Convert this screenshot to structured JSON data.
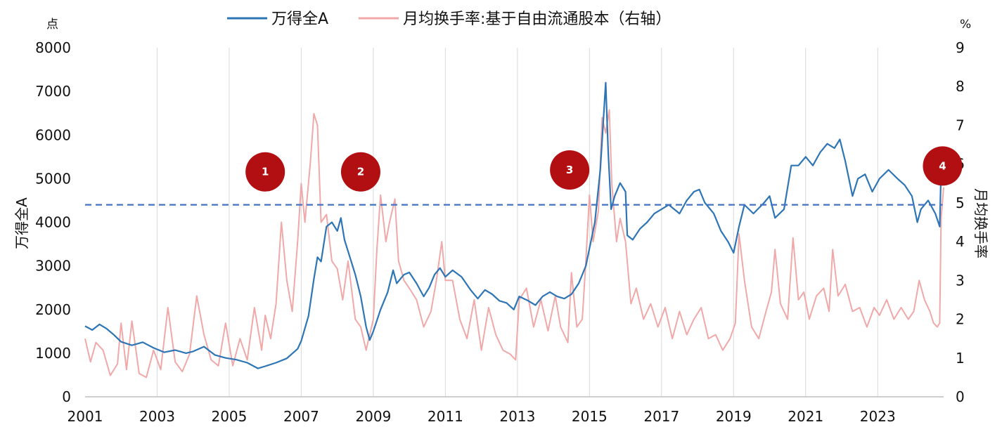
{
  "chart_data": {
    "type": "line",
    "title": "",
    "left_axis_unit": "点",
    "right_axis_unit": "%",
    "ylabel": "万得全A",
    "ylabel_right": "月均换手率",
    "x_ticks": [
      "2001",
      "2003",
      "2005",
      "2007",
      "2009",
      "2011",
      "2013",
      "2015",
      "2017",
      "2019",
      "2021",
      "2023"
    ],
    "xlim": [
      2001,
      2024.83
    ],
    "ylim": [
      0,
      8000
    ],
    "ylim_right": [
      0,
      9
    ],
    "y_ticks": [
      0,
      1000,
      2000,
      3000,
      4000,
      5000,
      6000,
      7000,
      8000
    ],
    "y_ticks_right": [
      0,
      1,
      2,
      3,
      4,
      5,
      6,
      7,
      8,
      9
    ],
    "grid": "vertical",
    "legend_position": "top-center",
    "reference_line": {
      "axis": "right",
      "value": 4.95,
      "style": "dashed",
      "color": "#4472c4"
    },
    "series": [
      {
        "name": "万得全A",
        "axis": "left",
        "color": "#2e75b6",
        "points": [
          [
            2001.0,
            1620
          ],
          [
            2001.2,
            1530
          ],
          [
            2001.4,
            1660
          ],
          [
            2001.6,
            1560
          ],
          [
            2001.8,
            1420
          ],
          [
            2002.0,
            1260
          ],
          [
            2002.3,
            1180
          ],
          [
            2002.6,
            1250
          ],
          [
            2002.9,
            1120
          ],
          [
            2003.2,
            1020
          ],
          [
            2003.5,
            1070
          ],
          [
            2003.8,
            1000
          ],
          [
            2004.0,
            1040
          ],
          [
            2004.3,
            1150
          ],
          [
            2004.6,
            960
          ],
          [
            2004.9,
            890
          ],
          [
            2005.2,
            850
          ],
          [
            2005.5,
            780
          ],
          [
            2005.8,
            650
          ],
          [
            2006.0,
            700
          ],
          [
            2006.3,
            780
          ],
          [
            2006.6,
            880
          ],
          [
            2006.9,
            1100
          ],
          [
            2007.0,
            1280
          ],
          [
            2007.2,
            1850
          ],
          [
            2007.35,
            2700
          ],
          [
            2007.45,
            3200
          ],
          [
            2007.55,
            3100
          ],
          [
            2007.7,
            3900
          ],
          [
            2007.85,
            4000
          ],
          [
            2008.0,
            3800
          ],
          [
            2008.1,
            4100
          ],
          [
            2008.2,
            3600
          ],
          [
            2008.35,
            3200
          ],
          [
            2008.5,
            2800
          ],
          [
            2008.65,
            2300
          ],
          [
            2008.8,
            1600
          ],
          [
            2008.9,
            1300
          ],
          [
            2009.0,
            1500
          ],
          [
            2009.2,
            2000
          ],
          [
            2009.4,
            2400
          ],
          [
            2009.55,
            2900
          ],
          [
            2009.65,
            2600
          ],
          [
            2009.85,
            2800
          ],
          [
            2010.0,
            2850
          ],
          [
            2010.2,
            2600
          ],
          [
            2010.4,
            2300
          ],
          [
            2010.55,
            2500
          ],
          [
            2010.7,
            2800
          ],
          [
            2010.85,
            2950
          ],
          [
            2011.0,
            2750
          ],
          [
            2011.2,
            2900
          ],
          [
            2011.45,
            2750
          ],
          [
            2011.7,
            2450
          ],
          [
            2011.9,
            2250
          ],
          [
            2012.1,
            2450
          ],
          [
            2012.3,
            2350
          ],
          [
            2012.5,
            2200
          ],
          [
            2012.7,
            2150
          ],
          [
            2012.9,
            2000
          ],
          [
            2013.05,
            2300
          ],
          [
            2013.3,
            2200
          ],
          [
            2013.5,
            2100
          ],
          [
            2013.7,
            2300
          ],
          [
            2013.9,
            2400
          ],
          [
            2014.1,
            2300
          ],
          [
            2014.3,
            2250
          ],
          [
            2014.5,
            2350
          ],
          [
            2014.7,
            2600
          ],
          [
            2014.9,
            3000
          ],
          [
            2015.0,
            3400
          ],
          [
            2015.15,
            4000
          ],
          [
            2015.3,
            5200
          ],
          [
            2015.45,
            7200
          ],
          [
            2015.52,
            5600
          ],
          [
            2015.6,
            4300
          ],
          [
            2015.7,
            4600
          ],
          [
            2015.85,
            4900
          ],
          [
            2016.0,
            4700
          ],
          [
            2016.05,
            3700
          ],
          [
            2016.2,
            3600
          ],
          [
            2016.4,
            3850
          ],
          [
            2016.6,
            4000
          ],
          [
            2016.8,
            4200
          ],
          [
            2017.0,
            4300
          ],
          [
            2017.2,
            4400
          ],
          [
            2017.5,
            4200
          ],
          [
            2017.7,
            4500
          ],
          [
            2017.9,
            4700
          ],
          [
            2018.05,
            4750
          ],
          [
            2018.2,
            4450
          ],
          [
            2018.45,
            4200
          ],
          [
            2018.65,
            3800
          ],
          [
            2018.85,
            3550
          ],
          [
            2019.0,
            3300
          ],
          [
            2019.15,
            3900
          ],
          [
            2019.3,
            4400
          ],
          [
            2019.55,
            4200
          ],
          [
            2019.85,
            4450
          ],
          [
            2020.0,
            4600
          ],
          [
            2020.15,
            4100
          ],
          [
            2020.4,
            4300
          ],
          [
            2020.6,
            5300
          ],
          [
            2020.8,
            5300
          ],
          [
            2021.0,
            5500
          ],
          [
            2021.2,
            5300
          ],
          [
            2021.4,
            5600
          ],
          [
            2021.6,
            5800
          ],
          [
            2021.8,
            5700
          ],
          [
            2021.95,
            5900
          ],
          [
            2022.1,
            5400
          ],
          [
            2022.3,
            4600
          ],
          [
            2022.45,
            5000
          ],
          [
            2022.65,
            5100
          ],
          [
            2022.85,
            4700
          ],
          [
            2023.05,
            5000
          ],
          [
            2023.3,
            5200
          ],
          [
            2023.55,
            5000
          ],
          [
            2023.75,
            4850
          ],
          [
            2023.95,
            4600
          ],
          [
            2024.1,
            4000
          ],
          [
            2024.2,
            4300
          ],
          [
            2024.4,
            4500
          ],
          [
            2024.6,
            4200
          ],
          [
            2024.72,
            3900
          ],
          [
            2024.76,
            5200
          ],
          [
            2024.83,
            5250
          ]
        ]
      },
      {
        "name": "月均换手率:基于自由流通股本（右轴）",
        "axis": "right",
        "color": "#f0a8a8",
        "points": [
          [
            2001.0,
            1.5
          ],
          [
            2001.15,
            0.9
          ],
          [
            2001.3,
            1.4
          ],
          [
            2001.5,
            1.2
          ],
          [
            2001.7,
            0.55
          ],
          [
            2001.9,
            0.85
          ],
          [
            2002.0,
            1.9
          ],
          [
            2002.15,
            0.7
          ],
          [
            2002.3,
            1.95
          ],
          [
            2002.5,
            0.6
          ],
          [
            2002.7,
            0.5
          ],
          [
            2002.9,
            1.2
          ],
          [
            2003.1,
            0.7
          ],
          [
            2003.3,
            2.3
          ],
          [
            2003.5,
            0.9
          ],
          [
            2003.7,
            0.65
          ],
          [
            2003.9,
            1.1
          ],
          [
            2004.1,
            2.6
          ],
          [
            2004.3,
            1.6
          ],
          [
            2004.5,
            0.95
          ],
          [
            2004.7,
            0.8
          ],
          [
            2004.9,
            1.9
          ],
          [
            2005.1,
            0.8
          ],
          [
            2005.3,
            1.5
          ],
          [
            2005.5,
            0.95
          ],
          [
            2005.7,
            2.3
          ],
          [
            2005.9,
            1.2
          ],
          [
            2006.0,
            2.1
          ],
          [
            2006.15,
            1.5
          ],
          [
            2006.3,
            2.4
          ],
          [
            2006.45,
            4.5
          ],
          [
            2006.6,
            3.0
          ],
          [
            2006.75,
            2.2
          ],
          [
            2006.9,
            4.0
          ],
          [
            2007.0,
            5.5
          ],
          [
            2007.1,
            4.5
          ],
          [
            2007.25,
            6.0
          ],
          [
            2007.35,
            7.3
          ],
          [
            2007.45,
            7.0
          ],
          [
            2007.55,
            4.5
          ],
          [
            2007.7,
            4.7
          ],
          [
            2007.85,
            3.5
          ],
          [
            2008.0,
            3.3
          ],
          [
            2008.15,
            2.5
          ],
          [
            2008.3,
            3.5
          ],
          [
            2008.5,
            2.0
          ],
          [
            2008.65,
            1.8
          ],
          [
            2008.8,
            1.2
          ],
          [
            2009.0,
            2.0
          ],
          [
            2009.1,
            3.8
          ],
          [
            2009.2,
            5.2
          ],
          [
            2009.35,
            4.0
          ],
          [
            2009.45,
            4.5
          ],
          [
            2009.6,
            5.1
          ],
          [
            2009.7,
            3.5
          ],
          [
            2009.85,
            3.0
          ],
          [
            2010.0,
            2.8
          ],
          [
            2010.2,
            2.5
          ],
          [
            2010.4,
            1.8
          ],
          [
            2010.6,
            2.2
          ],
          [
            2010.75,
            3.0
          ],
          [
            2010.9,
            4.0
          ],
          [
            2011.0,
            3.0
          ],
          [
            2011.2,
            3.0
          ],
          [
            2011.4,
            2.0
          ],
          [
            2011.6,
            1.5
          ],
          [
            2011.8,
            2.5
          ],
          [
            2012.0,
            1.2
          ],
          [
            2012.2,
            2.3
          ],
          [
            2012.4,
            1.6
          ],
          [
            2012.6,
            1.2
          ],
          [
            2012.8,
            1.1
          ],
          [
            2012.95,
            0.95
          ],
          [
            2013.05,
            2.5
          ],
          [
            2013.25,
            2.8
          ],
          [
            2013.45,
            1.8
          ],
          [
            2013.65,
            2.5
          ],
          [
            2013.85,
            1.7
          ],
          [
            2014.05,
            2.6
          ],
          [
            2014.2,
            1.8
          ],
          [
            2014.4,
            1.4
          ],
          [
            2014.5,
            3.2
          ],
          [
            2014.65,
            1.8
          ],
          [
            2014.8,
            2.0
          ],
          [
            2014.9,
            3.5
          ],
          [
            2015.0,
            5.2
          ],
          [
            2015.1,
            4.0
          ],
          [
            2015.25,
            4.8
          ],
          [
            2015.35,
            7.2
          ],
          [
            2015.45,
            6.8
          ],
          [
            2015.55,
            7.4
          ],
          [
            2015.62,
            5.5
          ],
          [
            2015.75,
            4.0
          ],
          [
            2015.85,
            4.6
          ],
          [
            2016.0,
            4.0
          ],
          [
            2016.15,
            2.4
          ],
          [
            2016.3,
            2.8
          ],
          [
            2016.5,
            2.0
          ],
          [
            2016.7,
            2.4
          ],
          [
            2016.9,
            1.8
          ],
          [
            2017.1,
            2.3
          ],
          [
            2017.3,
            1.5
          ],
          [
            2017.5,
            2.2
          ],
          [
            2017.7,
            1.6
          ],
          [
            2017.9,
            2.0
          ],
          [
            2018.1,
            2.3
          ],
          [
            2018.3,
            1.5
          ],
          [
            2018.5,
            1.6
          ],
          [
            2018.7,
            1.2
          ],
          [
            2018.9,
            1.5
          ],
          [
            2019.05,
            1.9
          ],
          [
            2019.15,
            4.2
          ],
          [
            2019.3,
            3.0
          ],
          [
            2019.5,
            1.8
          ],
          [
            2019.7,
            1.5
          ],
          [
            2019.9,
            2.2
          ],
          [
            2020.05,
            2.7
          ],
          [
            2020.15,
            3.8
          ],
          [
            2020.3,
            2.4
          ],
          [
            2020.5,
            2.0
          ],
          [
            2020.65,
            4.1
          ],
          [
            2020.8,
            2.5
          ],
          [
            2020.95,
            2.7
          ],
          [
            2021.1,
            2.0
          ],
          [
            2021.3,
            2.6
          ],
          [
            2021.5,
            2.8
          ],
          [
            2021.65,
            2.2
          ],
          [
            2021.75,
            3.8
          ],
          [
            2021.9,
            2.6
          ],
          [
            2022.1,
            2.9
          ],
          [
            2022.3,
            2.2
          ],
          [
            2022.5,
            2.3
          ],
          [
            2022.7,
            1.8
          ],
          [
            2022.9,
            2.3
          ],
          [
            2023.05,
            2.1
          ],
          [
            2023.25,
            2.5
          ],
          [
            2023.45,
            2.0
          ],
          [
            2023.65,
            2.3
          ],
          [
            2023.85,
            2.0
          ],
          [
            2024.0,
            2.2
          ],
          [
            2024.15,
            3.0
          ],
          [
            2024.3,
            2.5
          ],
          [
            2024.45,
            2.2
          ],
          [
            2024.55,
            1.9
          ],
          [
            2024.65,
            1.8
          ],
          [
            2024.72,
            1.9
          ],
          [
            2024.76,
            4.6
          ],
          [
            2024.83,
            5.4
          ]
        ]
      }
    ],
    "annotations": [
      {
        "label": "1",
        "x": 2006.0,
        "y_right": 5.8
      },
      {
        "label": "2",
        "x": 2008.65,
        "y_right": 5.8
      },
      {
        "label": "3",
        "x": 2014.45,
        "y_right": 5.85
      },
      {
        "label": "4",
        "x": 2024.8,
        "y_right": 5.95
      }
    ]
  }
}
